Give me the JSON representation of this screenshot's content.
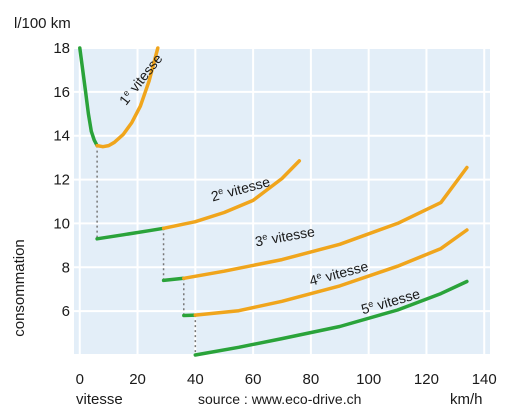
{
  "chart_data": {
    "type": "line",
    "title": "",
    "ylabel_top": "l/100 km",
    "ylabel": "consommation",
    "xlabel_left": "vitesse",
    "xlabel_right": "km/h",
    "source": "source : www.eco-drive.ch",
    "xlim": [
      -2,
      142
    ],
    "ylim": [
      4,
      18
    ],
    "xticks": [
      0,
      20,
      40,
      60,
      80,
      100,
      120,
      140
    ],
    "yticks": [
      6,
      8,
      10,
      12,
      14,
      16,
      18
    ],
    "grid": true,
    "plot_background": "#e3eef8",
    "colors": {
      "green": "#2aa33a",
      "orange": "#f0a51c",
      "dotted": "#777777"
    },
    "series": [
      {
        "name": "1e vitesse",
        "segments": [
          {
            "color": "green",
            "points": [
              [
                0,
                18
              ],
              [
                1,
                17
              ],
              [
                2,
                16
              ],
              [
                3,
                15
              ],
              [
                4,
                14.2
              ],
              [
                5,
                13.8
              ],
              [
                6,
                13.55
              ]
            ]
          },
          {
            "color": "orange",
            "points": [
              [
                6,
                13.55
              ],
              [
                8,
                13.5
              ],
              [
                10,
                13.55
              ],
              [
                12,
                13.7
              ],
              [
                15,
                14.05
              ],
              [
                18,
                14.6
              ],
              [
                21,
                15.35
              ],
              [
                24,
                16.5
              ],
              [
                27,
                18
              ]
            ]
          }
        ]
      },
      {
        "name": "2e vitesse",
        "segments": [
          {
            "color": "green",
            "points": [
              [
                6,
                9.3
              ],
              [
                15,
                9.48
              ],
              [
                24,
                9.67
              ],
              [
                29,
                9.78
              ]
            ]
          },
          {
            "color": "orange",
            "points": [
              [
                29,
                9.78
              ],
              [
                40,
                10.08
              ],
              [
                50,
                10.5
              ],
              [
                60,
                11.05
              ],
              [
                70,
                12.05
              ],
              [
                76,
                12.85
              ]
            ]
          }
        ]
      },
      {
        "name": "3e vitesse",
        "segments": [
          {
            "color": "green",
            "points": [
              [
                29,
                7.4
              ],
              [
                36,
                7.5
              ]
            ]
          },
          {
            "color": "orange",
            "points": [
              [
                36,
                7.5
              ],
              [
                50,
                7.82
              ],
              [
                70,
                8.35
              ],
              [
                90,
                9.05
              ],
              [
                110,
                10
              ],
              [
                125,
                10.95
              ],
              [
                134,
                12.55
              ]
            ]
          }
        ]
      },
      {
        "name": "4e vitesse",
        "segments": [
          {
            "color": "green",
            "points": [
              [
                36,
                5.8
              ],
              [
                40,
                5.82
              ]
            ]
          },
          {
            "color": "orange",
            "points": [
              [
                40,
                5.82
              ],
              [
                55,
                6.02
              ],
              [
                70,
                6.45
              ],
              [
                90,
                7.15
              ],
              [
                110,
                8.05
              ],
              [
                125,
                8.85
              ],
              [
                134,
                9.7
              ]
            ]
          }
        ]
      },
      {
        "name": "5e vitesse",
        "segments": [
          {
            "color": "green",
            "points": [
              [
                40,
                4
              ],
              [
                55,
                4.35
              ],
              [
                70,
                4.75
              ],
              [
                90,
                5.3
              ],
              [
                110,
                6.05
              ],
              [
                125,
                6.8
              ],
              [
                134,
                7.35
              ]
            ]
          }
        ]
      }
    ],
    "gear_labels": [
      {
        "base": "1",
        "sup": "e",
        "rest": " vitesse",
        "x": 16,
        "y": 15.35,
        "angle": -52
      },
      {
        "base": "2",
        "sup": "e",
        "rest": " vitesse",
        "x": 46,
        "y": 11.0,
        "angle": -15
      },
      {
        "base": "3",
        "sup": "e",
        "rest": " vitesse",
        "x": 61,
        "y": 8.95,
        "angle": -10
      },
      {
        "base": "4",
        "sup": "e",
        "rest": " vitesse",
        "x": 80,
        "y": 7.15,
        "angle": -15
      },
      {
        "base": "5",
        "sup": "e",
        "rest": " vitesse",
        "x": 98,
        "y": 5.85,
        "angle": -16
      }
    ],
    "shift_lines": [
      {
        "x": 6,
        "y1": 13.55,
        "y2": 9.3
      },
      {
        "x": 29,
        "y1": 9.78,
        "y2": 7.4
      },
      {
        "x": 36,
        "y1": 7.5,
        "y2": 5.8
      },
      {
        "x": 40,
        "y1": 5.82,
        "y2": 4
      }
    ]
  }
}
